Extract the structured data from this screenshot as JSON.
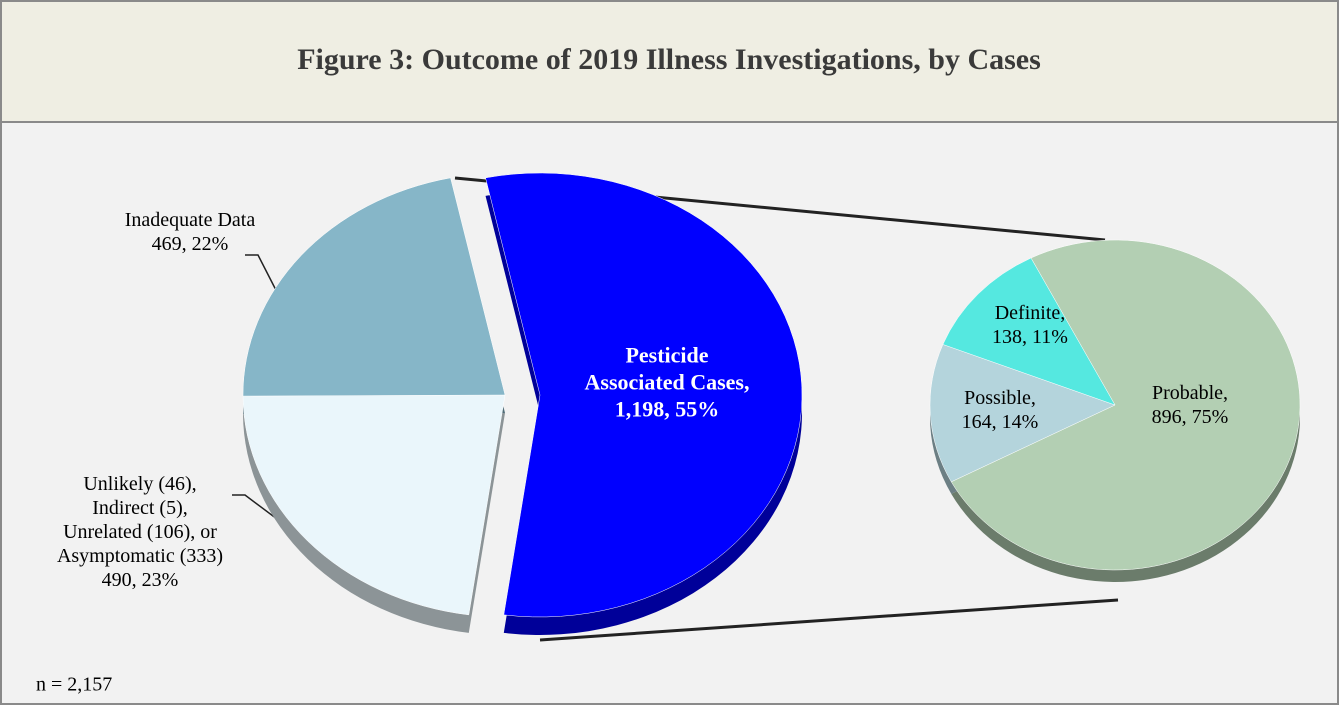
{
  "chart_data": [
    {
      "type": "pie",
      "title": "Figure 3: Outcome of 2019 Illness Investigations, by Cases",
      "categories": [
        "Pesticide\nAssociated Cases,",
        "Unlikely (46),\nIndirect (5),\nUnrelated (106), or\nAsymptomatic (333)",
        "Inadequate Data"
      ],
      "values": [
        1198,
        490,
        469
      ],
      "value_labels": [
        "1,198, 55%",
        "490, 23%",
        "469, 22%"
      ],
      "colors": [
        "#0000ff",
        "#eaf6fb",
        "#86b6c8"
      ],
      "note": "n = 2,157"
    },
    {
      "type": "pie",
      "categories": [
        "Probable,",
        "Possible,",
        "Definite,"
      ],
      "values": [
        896,
        164,
        138
      ],
      "value_labels": [
        "896, 75%",
        "164, 14%",
        "138, 11%"
      ],
      "colors": [
        "#b3cfb3",
        "#b4d4dc",
        "#55e8e0"
      ]
    }
  ]
}
